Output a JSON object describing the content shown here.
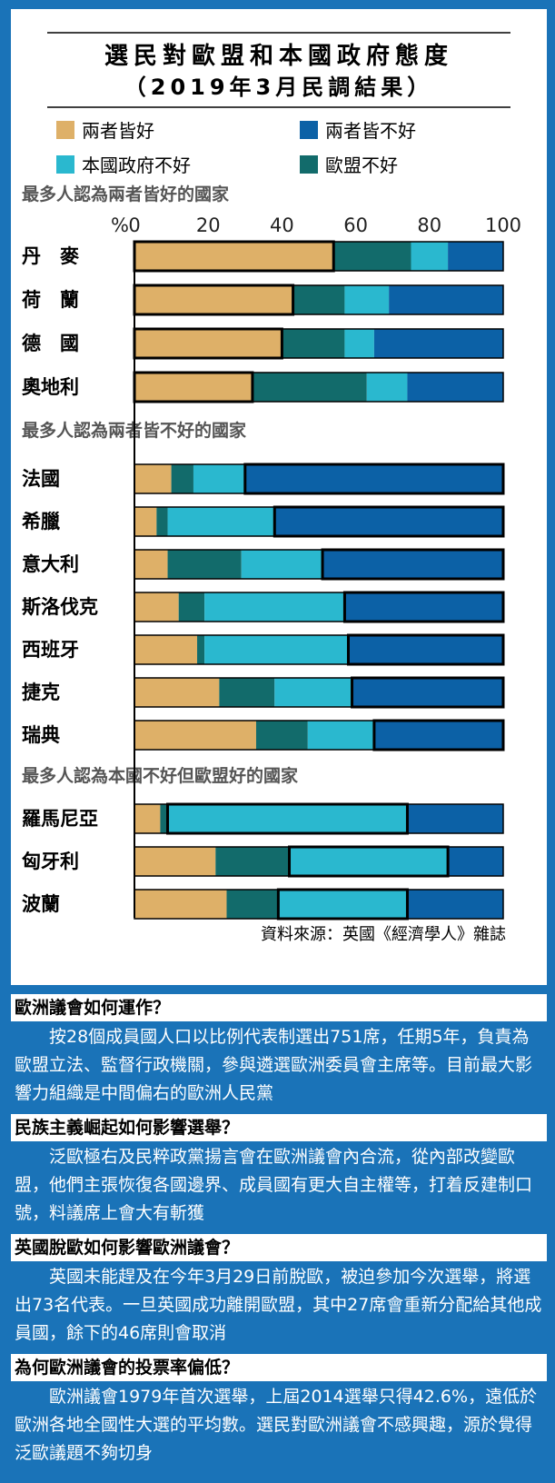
{
  "chart_data": {
    "type": "bar",
    "stacked": true,
    "orientation": "horizontal",
    "title_line1": "選民對歐盟和本國政府態度",
    "title_line2": "（2019年3月民調結果）",
    "axis_unit": "%",
    "xlim": [
      0,
      100
    ],
    "x_ticks": [
      "0",
      "20",
      "40",
      "60",
      "80",
      "100"
    ],
    "legend": [
      {
        "name": "兩者皆好",
        "color": "#deb068"
      },
      {
        "name": "兩者皆不好",
        "color": "#0c61a6"
      },
      {
        "name": "本國政府不好",
        "color": "#2ab8cf"
      },
      {
        "name": "歐盟不好",
        "color": "#126b6b"
      }
    ],
    "series_order": [
      "兩者皆好",
      "歐盟不好",
      "本國政府不好",
      "兩者皆不好"
    ],
    "groups": [
      {
        "title": "最多人認為兩者皆好的國家",
        "countries": [
          {
            "name": "丹　麥",
            "values": [
              54,
              21,
              10,
              15
            ],
            "highlight": 0
          },
          {
            "name": "荷　蘭",
            "values": [
              43,
              14,
              12,
              31
            ],
            "highlight": 0
          },
          {
            "name": "德　國",
            "values": [
              40,
              17,
              8,
              35
            ],
            "highlight": 0
          },
          {
            "name": "奧地利",
            "values": [
              32,
              31,
              11,
              26
            ],
            "highlight": 0
          }
        ]
      },
      {
        "title": "最多人認為兩者皆不好的國家",
        "countries": [
          {
            "name": "法國",
            "values": [
              10,
              6,
              14,
              70
            ],
            "highlight": 3
          },
          {
            "name": "希臘",
            "values": [
              6,
              3,
              29,
              62
            ],
            "highlight": 3
          },
          {
            "name": "意大利",
            "values": [
              9,
              20,
              22,
              49
            ],
            "highlight": 3
          },
          {
            "name": "斯洛伐克",
            "values": [
              12,
              7,
              38,
              43
            ],
            "highlight": 3
          },
          {
            "name": "西班牙",
            "values": [
              17,
              2,
              39,
              42
            ],
            "highlight": 3
          },
          {
            "name": "捷克",
            "values": [
              23,
              15,
              21,
              41
            ],
            "highlight": 3
          },
          {
            "name": "瑞典",
            "values": [
              33,
              14,
              18,
              35
            ],
            "highlight": 3
          }
        ]
      },
      {
        "title": "最多人認為本國不好但歐盟好的國家",
        "countries": [
          {
            "name": "羅馬尼亞",
            "values": [
              7,
              2,
              65,
              26
            ],
            "highlight": 2
          },
          {
            "name": "匈牙利",
            "values": [
              22,
              20,
              43,
              15
            ],
            "highlight": 2
          },
          {
            "name": "波蘭",
            "values": [
              25,
              14,
              35,
              26
            ],
            "highlight": 2
          }
        ]
      }
    ],
    "source": "資料來源：英國《經濟學人》雜誌"
  },
  "faq": [
    {
      "question": "歐洲議會如何運作？",
      "answer": "按28個成員國人口以比例代表制選出751席，任期5年，負責為歐盟立法、監督行政機關，參與遴選歐洲委員會主席等。目前最大影響力組織是中間偏右的歐洲人民黨"
    },
    {
      "question": "民族主義崛起如何影響選舉？",
      "answer": "泛歐極右及民粹政黨揚言會在歐洲議會內合流，從內部改變歐盟，他們主張恢復各國邊界、成員國有更大自主權等，打着反建制口號，料議席上會大有斬獲"
    },
    {
      "question": "英國脫歐如何影響歐洲議會？",
      "answer": "英國未能趕及在今年3月29日前脫歐，被迫參加今次選舉，將選出73名代表。一旦英國成功離開歐盟，其中27席會重新分配給其他成員國，餘下的46席則會取消"
    },
    {
      "question": "為何歐洲議會的投票率偏低？",
      "answer": "歐洲議會1979年首次選舉，上屆2014選舉只得42.6%，遠低於歐洲各地全國性大選的平均數。選民對歐洲議會不感興趣，源於覺得泛歐議題不夠切身"
    }
  ]
}
